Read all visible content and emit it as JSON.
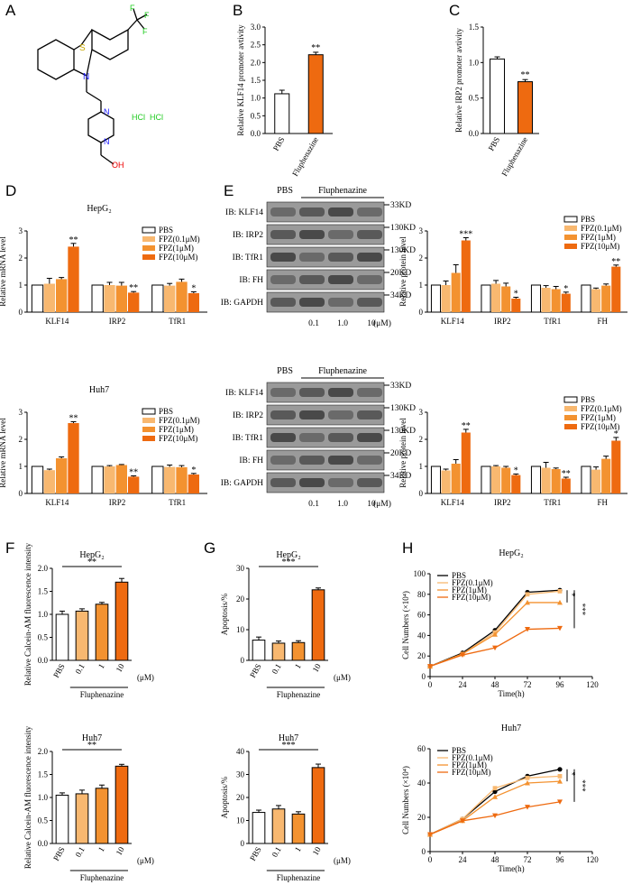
{
  "panel_letters": [
    "A",
    "B",
    "C",
    "D",
    "E",
    "F",
    "G",
    "H"
  ],
  "molecule": {
    "atoms": {
      "S": "S",
      "N": "N",
      "F": "F",
      "N1": "N",
      "N2": "N",
      "OH": "OH"
    },
    "salt": [
      "HCl",
      "HCl"
    ]
  },
  "colors": {
    "pbs": "#ffffff",
    "s1": "#f8b870",
    "s2": "#f39230",
    "s3": "#ee6a10",
    "bar_stroke": "#000000",
    "pbs_line": "#000000",
    "molecule_S": "#c8a800",
    "molecule_N": "#1a1aff",
    "molecule_F": "#22cc22",
    "molecule_O": "#ee0000",
    "molecule_HCl": "#22cc22"
  },
  "western_blot": {
    "group_labels": [
      "PBS",
      "Fluphenazine"
    ],
    "rows": [
      "IB: KLF14",
      "IB: IRP2",
      "IB: TfR1",
      "IB: FH",
      "IB: GAPDH"
    ],
    "markers": [
      "33KD",
      "130KD",
      "130KD",
      "20KD",
      "34KD"
    ],
    "doses": [
      "0.1",
      "1.0",
      "10"
    ],
    "dose_unit": "(μM)"
  },
  "chart_data": [
    {
      "id": "B",
      "type": "bar",
      "ylabel": "Relative KLF14 promoter avtivity",
      "categories": [
        "PBS",
        "Fluphenazine"
      ],
      "values": [
        1.12,
        2.22
      ],
      "errors": [
        0.1,
        0.07
      ],
      "ylim": [
        0,
        3.0
      ],
      "yticks": [
        "0.0",
        "0.5",
        "1.0",
        "1.5",
        "2.0",
        "2.5",
        "3.0"
      ],
      "sig": [
        "",
        "**"
      ]
    },
    {
      "id": "C",
      "type": "bar",
      "ylabel": "Relative IRP2 promoter avtivity",
      "categories": [
        "PBS",
        "Fluphenazine"
      ],
      "values": [
        1.05,
        0.73
      ],
      "errors": [
        0.03,
        0.03
      ],
      "ylim": [
        0,
        1.5
      ],
      "yticks": [
        "0.0",
        "0.5",
        "1.0",
        "1.5"
      ],
      "sig": [
        "",
        "**"
      ]
    },
    {
      "id": "D1",
      "type": "bar",
      "title": "HepG₂",
      "ylabel": "Relative mRNA level",
      "categories": [
        "KLF14",
        "IRP2",
        "TfR1"
      ],
      "legend": [
        "PBS",
        "FPZ(0.1μM)",
        "FPZ(1μM)",
        "FPZ(10μM)"
      ],
      "ylim": [
        0,
        3
      ],
      "yticks": [
        "0",
        "1",
        "2",
        "3"
      ],
      "series": [
        {
          "name": "PBS",
          "values": [
            1.0,
            1.0,
            1.0
          ],
          "errors": [
            0,
            0,
            0
          ]
        },
        {
          "name": "FPZ(0.1μM)",
          "values": [
            1.05,
            1.0,
            0.98
          ],
          "errors": [
            0.2,
            0.1,
            0.08
          ]
        },
        {
          "name": "FPZ(1μM)",
          "values": [
            1.22,
            0.98,
            1.12
          ],
          "errors": [
            0.06,
            0.12,
            0.1
          ]
        },
        {
          "name": "FPZ(10μM)",
          "values": [
            2.42,
            0.72,
            0.7
          ],
          "errors": [
            0.12,
            0.04,
            0.05
          ]
        }
      ],
      "sig": [
        [
          "",
          "",
          "",
          "**"
        ],
        [
          "",
          "",
          "",
          "**"
        ],
        [
          "",
          "",
          "",
          "*"
        ]
      ]
    },
    {
      "id": "D2",
      "type": "bar",
      "title": "Huh7",
      "ylabel": "Relative mRNA level",
      "categories": [
        "KLF14",
        "IRP2",
        "TfR1"
      ],
      "legend": [
        "PBS",
        "FPZ(0.1μM)",
        "FPZ(1μM)",
        "FPZ(10μM)"
      ],
      "ylim": [
        0,
        3
      ],
      "yticks": [
        "0",
        "1",
        "2",
        "3"
      ],
      "series": [
        {
          "name": "PBS",
          "values": [
            1.0,
            1.0,
            1.0
          ],
          "errors": [
            0,
            0,
            0
          ]
        },
        {
          "name": "FPZ(0.1μM)",
          "values": [
            0.86,
            1.0,
            0.98
          ],
          "errors": [
            0.04,
            0.03,
            0.07
          ]
        },
        {
          "name": "FPZ(1μM)",
          "values": [
            1.3,
            1.05,
            0.97
          ],
          "errors": [
            0.05,
            0.02,
            0.06
          ]
        },
        {
          "name": "FPZ(10μM)",
          "values": [
            2.6,
            0.62,
            0.7
          ],
          "errors": [
            0.05,
            0.03,
            0.04
          ]
        }
      ],
      "sig": [
        [
          "",
          "",
          "",
          "**"
        ],
        [
          "",
          "",
          "",
          "**"
        ],
        [
          "",
          "",
          "",
          "*"
        ]
      ]
    },
    {
      "id": "E1",
      "type": "bar",
      "ylabel": "Relative protein level",
      "categories": [
        "KLF14",
        "IRP2",
        "TfR1",
        "FH"
      ],
      "legend": [
        "PBS",
        "FPZ(0.1μM)",
        "FPZ(1μM)",
        "FPZ(10μM)"
      ],
      "ylim": [
        0,
        3
      ],
      "yticks": [
        "0",
        "1",
        "2",
        "3"
      ],
      "series": [
        {
          "name": "PBS",
          "values": [
            1.0,
            1.0,
            1.0,
            1.0
          ],
          "errors": [
            0,
            0,
            0,
            0
          ]
        },
        {
          "name": "FPZ(0.1μM)",
          "values": [
            1.0,
            1.05,
            0.9,
            0.85
          ],
          "errors": [
            0.15,
            0.12,
            0.08,
            0.04
          ]
        },
        {
          "name": "FPZ(1μM)",
          "values": [
            1.45,
            0.95,
            0.85,
            0.98
          ],
          "errors": [
            0.3,
            0.12,
            0.1,
            0.06
          ]
        },
        {
          "name": "FPZ(10μM)",
          "values": [
            2.65,
            0.5,
            0.68,
            1.68
          ],
          "errors": [
            0.1,
            0.05,
            0.06,
            0.06
          ]
        }
      ],
      "sig": [
        [
          "",
          "",
          "",
          "***"
        ],
        [
          "",
          "",
          "",
          "*"
        ],
        [
          "",
          "",
          "",
          "*"
        ],
        [
          "",
          "",
          "",
          "**"
        ]
      ]
    },
    {
      "id": "E2",
      "type": "bar",
      "ylabel": "Relative protein level",
      "categories": [
        "KLF14",
        "IRP2",
        "TfR1",
        "FH"
      ],
      "legend": [
        "PBS",
        "FPZ(0.1μM)",
        "FPZ(1μM)",
        "FPZ(10μM)"
      ],
      "ylim": [
        0,
        3
      ],
      "yticks": [
        "0",
        "1",
        "2",
        "3"
      ],
      "series": [
        {
          "name": "PBS",
          "values": [
            1.0,
            1.0,
            1.0,
            1.0
          ],
          "errors": [
            0,
            0,
            0,
            0
          ]
        },
        {
          "name": "FPZ(0.1μM)",
          "values": [
            0.85,
            1.0,
            0.95,
            0.88
          ],
          "errors": [
            0.05,
            0.03,
            0.2,
            0.1
          ]
        },
        {
          "name": "FPZ(1μM)",
          "values": [
            1.1,
            0.95,
            0.9,
            1.28
          ],
          "errors": [
            0.15,
            0.05,
            0.04,
            0.1
          ]
        },
        {
          "name": "FPZ(10μM)",
          "values": [
            2.25,
            0.68,
            0.55,
            1.95
          ],
          "errors": [
            0.12,
            0.04,
            0.05,
            0.12
          ]
        }
      ],
      "sig": [
        [
          "",
          "",
          "",
          "**"
        ],
        [
          "",
          "",
          "",
          "*"
        ],
        [
          "",
          "",
          "",
          "**"
        ],
        [
          "",
          "",
          "",
          "*"
        ]
      ]
    },
    {
      "id": "F1",
      "type": "bar",
      "title": "HepG₂",
      "ylabel": "Relative Calcein-AM fluorescence intensity",
      "categories": [
        "PBS",
        "0.1",
        "1",
        "10"
      ],
      "group_label": "Fluphenazine",
      "unit": "(μM)",
      "values": [
        1.0,
        1.07,
        1.22,
        1.7
      ],
      "errors": [
        0.07,
        0.05,
        0.04,
        0.08
      ],
      "ylim": [
        0,
        2.0
      ],
      "yticks": [
        "0.0",
        "0.5",
        "1.0",
        "1.5",
        "2.0"
      ],
      "bracket": "**"
    },
    {
      "id": "F2",
      "type": "bar",
      "title": "Huh7",
      "ylabel": "Relative Calcein-AM fluorescence intensity",
      "categories": [
        "PBS",
        "0.1",
        "1",
        "10"
      ],
      "group_label": "Fluphenazine",
      "unit": "(μM)",
      "values": [
        1.05,
        1.08,
        1.2,
        1.68
      ],
      "errors": [
        0.05,
        0.08,
        0.07,
        0.04
      ],
      "ylim": [
        0,
        2.0
      ],
      "yticks": [
        "0.0",
        "0.5",
        "1.0",
        "1.5",
        "2.0"
      ],
      "bracket": "**"
    },
    {
      "id": "G1",
      "type": "bar",
      "title": "HepG₂",
      "ylabel": "Apoptosis/%",
      "categories": [
        "PBS",
        "0.1",
        "1",
        "10"
      ],
      "group_label": "Fluphenazine",
      "unit": "(μM)",
      "values": [
        6.6,
        5.6,
        5.8,
        23.0
      ],
      "errors": [
        1.0,
        0.7,
        0.6,
        0.6
      ],
      "ylim": [
        0,
        30
      ],
      "yticks": [
        "0",
        "10",
        "20",
        "30"
      ],
      "bracket": "***"
    },
    {
      "id": "G2",
      "type": "bar",
      "title": "Huh7",
      "ylabel": "Apoptosis/%",
      "categories": [
        "PBS",
        "0.1",
        "1",
        "10"
      ],
      "group_label": "Fluphenazine",
      "unit": "(μM)",
      "values": [
        13.5,
        15.0,
        12.8,
        33.0
      ],
      "errors": [
        1.0,
        1.5,
        1.0,
        1.5
      ],
      "ylim": [
        0,
        40
      ],
      "yticks": [
        "0",
        "10",
        "20",
        "30",
        "40"
      ],
      "bracket": "***"
    },
    {
      "id": "H1",
      "type": "line",
      "title": "HepG₂",
      "xlabel": "Time(h)",
      "ylabel": "Cell Numbers (×10⁴)",
      "x": [
        0,
        24,
        48,
        72,
        96
      ],
      "xlim": [
        0,
        120
      ],
      "ylim": [
        0,
        100
      ],
      "xticks": [
        "0",
        "24",
        "48",
        "72",
        "96",
        "120"
      ],
      "yticks": [
        "0",
        "20",
        "40",
        "60",
        "80",
        "100"
      ],
      "series": [
        {
          "name": "PBS",
          "values": [
            10,
            23,
            45,
            82,
            84
          ]
        },
        {
          "name": "FPZ(0.1μM)",
          "values": [
            10,
            22,
            43,
            80,
            83
          ]
        },
        {
          "name": "FPZ(1μM)",
          "values": [
            10,
            22,
            41,
            72,
            72
          ]
        },
        {
          "name": "FPZ(10μM)",
          "values": [
            10,
            21,
            28,
            46,
            47
          ]
        }
      ],
      "sig": [
        "*",
        "***"
      ]
    },
    {
      "id": "H2",
      "type": "line",
      "title": "Huh7",
      "xlabel": "Time(h)",
      "ylabel": "Cell Numbers (×10⁴)",
      "x": [
        0,
        24,
        48,
        72,
        96
      ],
      "xlim": [
        0,
        120
      ],
      "ylim": [
        0,
        60
      ],
      "xticks": [
        "0",
        "24",
        "48",
        "72",
        "96",
        "120"
      ],
      "yticks": [
        "0",
        "20",
        "40",
        "60"
      ],
      "series": [
        {
          "name": "PBS",
          "values": [
            10,
            19,
            35,
            44,
            48
          ]
        },
        {
          "name": "FPZ(0.1μM)",
          "values": [
            10,
            19,
            37,
            43,
            44
          ]
        },
        {
          "name": "FPZ(1μM)",
          "values": [
            10,
            18,
            32,
            40,
            41
          ]
        },
        {
          "name": "FPZ(10μM)",
          "values": [
            10,
            18,
            21,
            26,
            29
          ]
        }
      ],
      "sig": [
        "*",
        "***"
      ]
    }
  ]
}
